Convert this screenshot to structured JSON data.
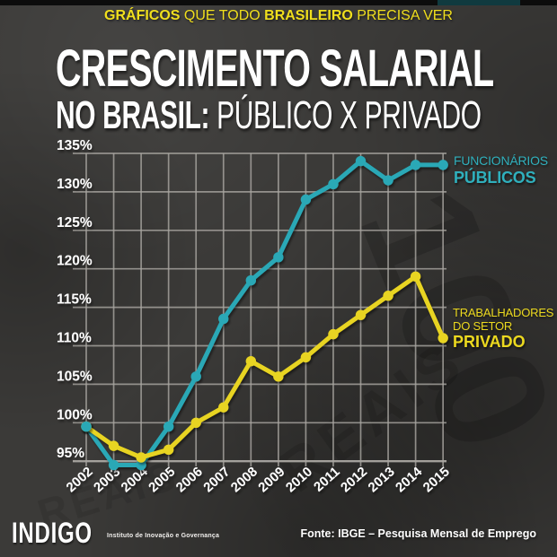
{
  "meta": {
    "bg_color": "#3b3a38",
    "top_bar_color": "#0c0c0c",
    "kicker_color": "#f0df1d",
    "title_color": "#ffffff",
    "grid_color": "#aaa7a2"
  },
  "header": {
    "part1": "GRÁFICOS",
    "part2": " QUE TODO ",
    "part3": "BRASILEIRO",
    "part4": " PRECISA VER"
  },
  "title": {
    "line1": "CRESCIMENTO SALARIAL",
    "line2_bold": "NO BRASIL:",
    "line2_rest": " PÚBLICO X PRIVADO"
  },
  "legend_public": {
    "line1": "FUNCIONÁRIOS",
    "line2": "PÚBLICOS",
    "color": "#2fb0bd"
  },
  "legend_private": {
    "line1": "TRABALHADORES",
    "line2": "DO SETOR",
    "line3": "PRIVADO",
    "color": "#ecd91f"
  },
  "footer": {
    "logo": "INDIGO",
    "institute": "Instituto de Inovação e Governança",
    "source": "Fonte: IBGE – Pesquisa Mensal de Emprego"
  },
  "background_texture": {
    "watermarks": [
      "100",
      "REAIS",
      "REAIS"
    ]
  },
  "chart_data": {
    "type": "line",
    "title": "Crescimento salarial no Brasil: público x privado",
    "xlabel": "",
    "ylabel": "",
    "x": [
      2002,
      2003,
      2004,
      2005,
      2006,
      2007,
      2008,
      2009,
      2010,
      2011,
      2012,
      2013,
      2014,
      2015
    ],
    "yticks": [
      95,
      100,
      105,
      110,
      115,
      120,
      125,
      130,
      135
    ],
    "ytick_suffix": "%",
    "ylim": [
      93.5,
      136
    ],
    "grid": true,
    "legend_position": "right",
    "series": [
      {
        "name": "Funcionários públicos",
        "color": "#29a8b6",
        "values": [
          99.5,
          94.5,
          94.5,
          99.5,
          106,
          113.5,
          118.5,
          121.5,
          129,
          131,
          134,
          131.5,
          133.5,
          133.5
        ]
      },
      {
        "name": "Trabalhadores do setor privado",
        "color": "#e8d420",
        "values": [
          99.5,
          97,
          95.5,
          96.5,
          100,
          102,
          108,
          106,
          108.5,
          111.5,
          114,
          116.5,
          119,
          111
        ]
      }
    ]
  }
}
